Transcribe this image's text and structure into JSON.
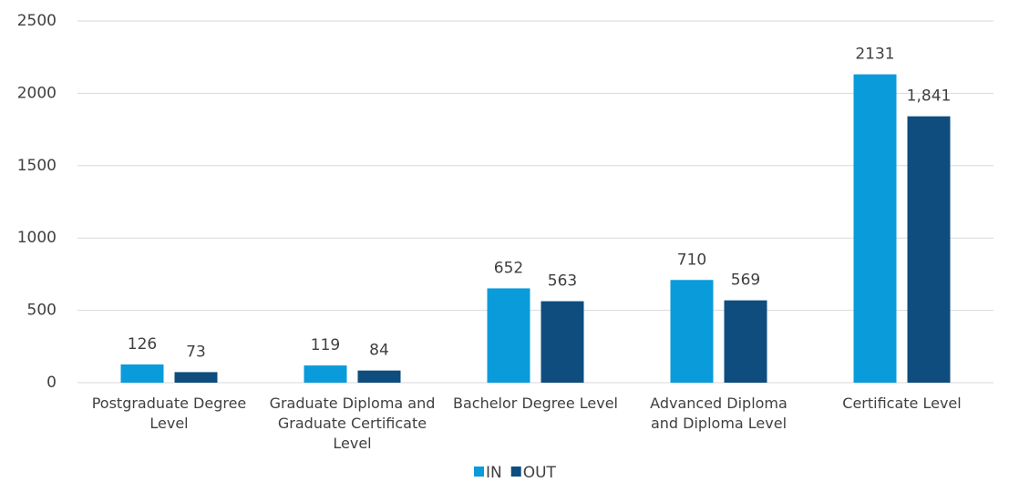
{
  "chart_data": {
    "type": "bar",
    "categories": [
      "Postgraduate Degree Level",
      "Graduate Diploma and Graduate Certificate Level",
      "Bachelor Degree Level",
      "Advanced Diploma and Diploma Level",
      "Certificate Level"
    ],
    "series": [
      {
        "name": "IN",
        "color": "#0a9bdb",
        "values": [
          126,
          119,
          652,
          710,
          2131
        ]
      },
      {
        "name": "OUT",
        "color": "#0e4d7e",
        "values": [
          73,
          84,
          563,
          569,
          1841
        ],
        "value_labels": [
          "73",
          "84",
          "563",
          "569",
          "1,841"
        ]
      }
    ],
    "ylim": [
      0,
      2500
    ],
    "yticks": [
      0,
      500,
      1000,
      1500,
      2000,
      2500
    ],
    "grid": true,
    "legend": "bottom"
  }
}
